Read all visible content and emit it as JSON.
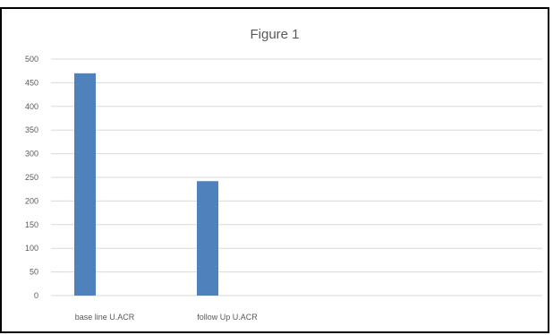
{
  "chart_data": {
    "type": "bar",
    "title": "Figure 1",
    "categories": [
      "base line U.ACR",
      "follow Up U.ACR"
    ],
    "values": [
      470,
      242
    ],
    "ylim": [
      0,
      500
    ],
    "yticks": [
      "0",
      "50",
      "100",
      "150",
      "200",
      "250",
      "300",
      "350",
      "400",
      "450",
      "500"
    ],
    "grid": true,
    "bar_color": "#4F81BD",
    "gridline_color": "#D9D9D9"
  }
}
